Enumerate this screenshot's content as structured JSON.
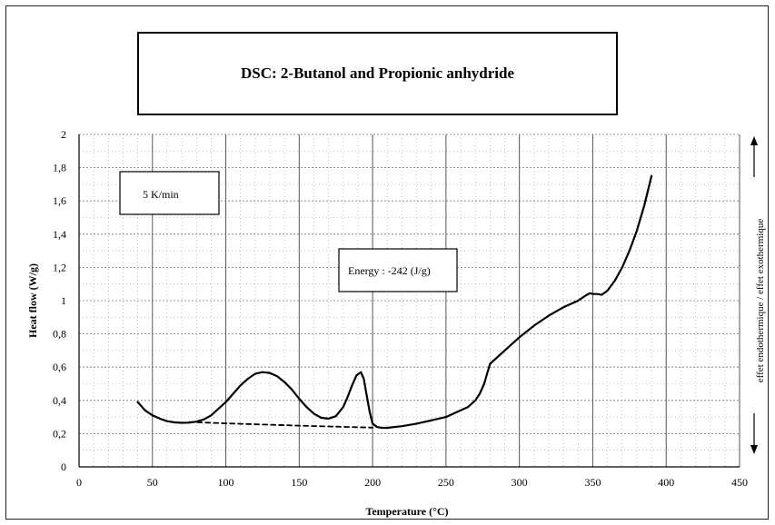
{
  "chart_data": {
    "type": "line",
    "title": "DSC: 2-Butanol and Propionic anhydride",
    "xlabel": "Temperature (°C)",
    "ylabel": "Heat flow (W/g)",
    "right_label": "effet endothermique / effet exothermique",
    "xlim": [
      0,
      450
    ],
    "ylim": [
      0,
      2
    ],
    "x_ticks": [
      0,
      50,
      100,
      150,
      200,
      250,
      300,
      350,
      400,
      450
    ],
    "x_tick_labels": [
      "0",
      "50",
      "100",
      "150",
      "200",
      "250",
      "300",
      "350",
      "400",
      "450"
    ],
    "y_ticks": [
      0,
      0.2,
      0.4,
      0.6,
      0.8,
      1,
      1.2,
      1.4,
      1.6,
      1.8,
      2
    ],
    "y_tick_labels": [
      "0",
      "0,2",
      "0,4",
      "0,6",
      "0,8",
      "1",
      "1,2",
      "1,4",
      "1,6",
      "1,8",
      "2"
    ],
    "grid": true,
    "annotations": [
      "5 K/min",
      "Energy : -242 (J/g)"
    ],
    "series": [
      {
        "style": "solid",
        "x": [
          40,
          45,
          50,
          55,
          60,
          65,
          70,
          75,
          80,
          85,
          90,
          95,
          100,
          105,
          110,
          115,
          120,
          125,
          130,
          135,
          140,
          145,
          150,
          155,
          160,
          165,
          170,
          175,
          180,
          183,
          186,
          189,
          192,
          194,
          196,
          198,
          200,
          203,
          206,
          210,
          220,
          230,
          240,
          250,
          260,
          265,
          270,
          273,
          276,
          278,
          280,
          290,
          300,
          310,
          320,
          330,
          340,
          345,
          348,
          350,
          353,
          356,
          360,
          365,
          370,
          375,
          380,
          385,
          390
        ],
        "y": [
          0.39,
          0.34,
          0.31,
          0.29,
          0.275,
          0.268,
          0.265,
          0.266,
          0.272,
          0.285,
          0.31,
          0.35,
          0.39,
          0.44,
          0.49,
          0.53,
          0.56,
          0.57,
          0.565,
          0.545,
          0.51,
          0.465,
          0.41,
          0.36,
          0.32,
          0.295,
          0.29,
          0.305,
          0.36,
          0.42,
          0.49,
          0.55,
          0.57,
          0.53,
          0.43,
          0.33,
          0.26,
          0.24,
          0.235,
          0.235,
          0.245,
          0.26,
          0.28,
          0.3,
          0.34,
          0.36,
          0.4,
          0.44,
          0.5,
          0.56,
          0.62,
          0.7,
          0.78,
          0.85,
          0.91,
          0.96,
          1.0,
          1.03,
          1.045,
          1.04,
          1.04,
          1.035,
          1.06,
          1.12,
          1.2,
          1.3,
          1.42,
          1.57,
          1.75
        ]
      },
      {
        "style": "dashed",
        "x": [
          75,
          100,
          150,
          200
        ],
        "y": [
          0.27,
          0.262,
          0.248,
          0.236
        ]
      }
    ]
  }
}
